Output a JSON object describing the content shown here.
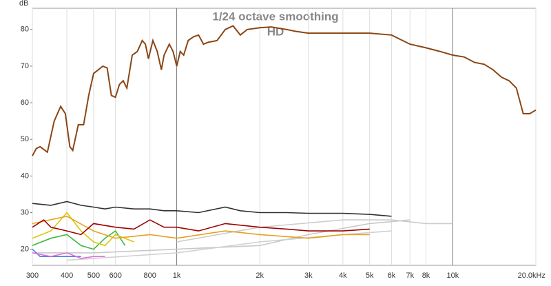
{
  "chart_data": {
    "type": "line",
    "title": "1/24 octave smoothing",
    "subtitle": "HD",
    "y_label": "dB",
    "log_x": true,
    "grid": "x",
    "xlim": [
      300,
      20000
    ],
    "ylim": [
      15.6,
      85.8
    ],
    "xticks": [
      300,
      400,
      500,
      600,
      800,
      {
        "value": 1000,
        "label": "1k"
      },
      {
        "value": 2000,
        "label": "2k"
      },
      {
        "value": 3000,
        "label": "3k"
      },
      {
        "value": 4000,
        "label": "4k"
      },
      {
        "value": 5000,
        "label": "5k"
      },
      {
        "value": 6000,
        "label": "6k"
      },
      {
        "value": 7000,
        "label": "7k"
      },
      {
        "value": 8000,
        "label": "8k"
      },
      {
        "value": 10000,
        "label": "10k"
      },
      {
        "value": 20000,
        "label": "20.0kHz"
      }
    ],
    "major_xticks": [
      1000,
      10000
    ],
    "yticks": [
      20,
      30,
      40,
      50,
      60,
      70,
      80
    ],
    "series": [
      {
        "color": "#c8c8c8",
        "x": [
          300,
          500,
          1000,
          2000,
          3000,
          5000,
          7000
        ],
        "values": [
          19,
          19,
          20,
          21,
          24,
          27,
          28
        ]
      },
      {
        "color": "#d0d0d0",
        "x": [
          400,
          1000,
          2000,
          4000,
          6000
        ],
        "values": [
          17,
          19,
          22,
          24,
          25
        ]
      },
      {
        "color": "#cccccc",
        "x": [
          1000,
          2000,
          4000,
          6000,
          8000,
          10000
        ],
        "values": [
          22,
          26,
          28,
          28,
          27,
          27
        ]
      },
      {
        "color": "#4f7fd8",
        "x": [
          300,
          320,
          350,
          400,
          450
        ],
        "values": [
          20,
          18,
          18,
          18,
          18
        ]
      },
      {
        "color": "#e070e0",
        "x": [
          300,
          350,
          400,
          450,
          500,
          550
        ],
        "values": [
          19,
          18,
          19,
          17.5,
          18,
          18
        ]
      },
      {
        "color": "#3cb83c",
        "x": [
          300,
          350,
          400,
          450,
          500,
          550,
          600,
          650
        ],
        "values": [
          21,
          23,
          24,
          21,
          20,
          23,
          25,
          21
        ]
      },
      {
        "color": "#d8c800",
        "x": [
          300,
          350,
          400,
          450,
          500,
          550,
          600,
          700
        ],
        "values": [
          23,
          25,
          30,
          25,
          22,
          21,
          24,
          22
        ]
      },
      {
        "color": "#e8a020",
        "x": [
          300,
          400,
          500,
          600,
          800,
          1000,
          1500,
          2000,
          3000,
          4000,
          5000
        ],
        "values": [
          27,
          29,
          25,
          23,
          24,
          23,
          25,
          24,
          23,
          24,
          24
        ]
      },
      {
        "color": "#a00000",
        "x": [
          300,
          330,
          350,
          400,
          450,
          500,
          600,
          700,
          800,
          900,
          1000,
          1200,
          1500,
          2000,
          2500,
          3000,
          4000,
          5000
        ],
        "values": [
          26,
          28,
          26,
          25,
          24,
          27,
          26,
          25.5,
          28,
          26,
          26,
          25,
          27,
          26,
          25.5,
          25,
          25,
          25.5
        ]
      },
      {
        "color": "#303030",
        "x": [
          300,
          350,
          400,
          450,
          500,
          550,
          600,
          700,
          800,
          900,
          1000,
          1200,
          1500,
          1700,
          2000,
          2500,
          3000,
          4000,
          5000,
          6000
        ],
        "values": [
          32.5,
          32,
          33,
          32,
          31.5,
          31,
          31.5,
          31,
          31,
          30.5,
          30.5,
          30,
          31.5,
          30.5,
          30,
          30,
          29.8,
          29.8,
          29.5,
          29
        ]
      },
      {
        "color": "#8b4513",
        "x": [
          300,
          310,
          320,
          340,
          360,
          380,
          395,
          410,
          420,
          440,
          460,
          480,
          500,
          520,
          540,
          560,
          580,
          600,
          620,
          640,
          660,
          690,
          720,
          750,
          770,
          790,
          820,
          850,
          880,
          900,
          940,
          970,
          1000,
          1030,
          1060,
          1100,
          1150,
          1200,
          1250,
          1300,
          1400,
          1500,
          1600,
          1700,
          1800,
          2000,
          2200,
          2500,
          2700,
          3000,
          3500,
          4000,
          5000,
          6000,
          7000,
          8000,
          9000,
          10000,
          11000,
          12000,
          13000,
          14000,
          15000,
          16000,
          17000,
          18000,
          19000,
          20000
        ],
        "values": [
          45.5,
          47.5,
          48,
          46.5,
          55,
          59,
          57,
          48,
          47,
          54,
          54,
          62,
          68,
          69,
          70,
          69.5,
          62,
          61.5,
          65,
          66,
          64,
          73,
          74,
          77,
          76,
          72,
          77,
          74,
          69,
          73,
          76,
          74,
          70,
          74,
          73,
          77,
          78,
          78.5,
          76,
          76.5,
          77,
          80,
          81,
          78.5,
          80,
          80.5,
          80.7,
          80,
          79.5,
          79,
          79,
          79,
          79,
          78.5,
          76,
          75,
          74,
          73,
          72.5,
          71,
          70.5,
          69,
          67,
          66,
          64,
          57,
          57,
          58
        ]
      }
    ]
  }
}
